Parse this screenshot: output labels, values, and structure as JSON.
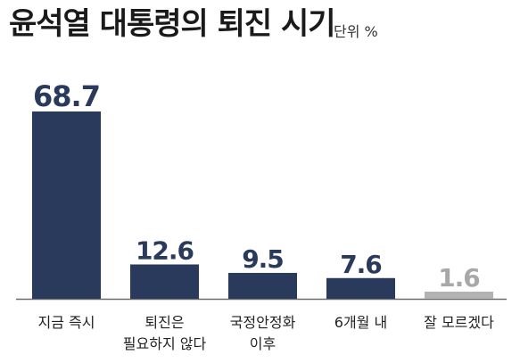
{
  "title": "윤석열 대통령의 퇴진 시기",
  "unit_label": "단위 %",
  "colors": {
    "primary": "#2a3a5c",
    "muted": "#b3b3b3",
    "muted_label": "#a8a8a8",
    "axis": "#6b6b6b"
  },
  "chart_data": {
    "type": "bar",
    "title": "윤석열 대통령의 퇴진 시기",
    "unit": "%",
    "categories": [
      [
        "지금 즉시"
      ],
      [
        "퇴진은",
        "필요하지 않다"
      ],
      [
        "국정안정화",
        "이후"
      ],
      [
        "6개월 내"
      ],
      [
        "잘 모르겠다"
      ]
    ],
    "values": [
      68.7,
      12.6,
      9.5,
      7.6,
      1.6
    ],
    "value_labels": [
      "68.7",
      "12.6",
      "9.5",
      "7.6",
      "1.6"
    ],
    "highlight": [
      true,
      true,
      true,
      true,
      false
    ],
    "ylim": [
      0,
      70
    ],
    "grid": false,
    "legend": "none"
  }
}
